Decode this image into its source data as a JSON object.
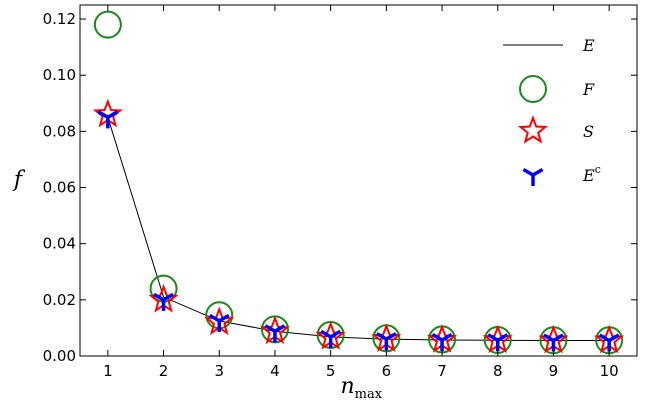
{
  "chart_data": {
    "type": "line",
    "title": "",
    "xlabel": "n",
    "xlabel_subscript": "max",
    "ylabel": "f",
    "x": [
      1,
      2,
      3,
      4,
      5,
      6,
      7,
      8,
      9,
      10
    ],
    "xlim": [
      0.5,
      10.5
    ],
    "ylim": [
      0.0,
      0.125
    ],
    "xticks": [
      "1",
      "2",
      "3",
      "4",
      "5",
      "6",
      "7",
      "8",
      "9",
      "10"
    ],
    "yticks": [
      "0.00",
      "0.02",
      "0.04",
      "0.06",
      "0.08",
      "0.10",
      "0.12"
    ],
    "ytick_values": [
      0.0,
      0.02,
      0.04,
      0.06,
      0.08,
      0.1,
      0.12
    ],
    "grid": false,
    "legend_position": "top-right",
    "series": [
      {
        "name": "E",
        "sup": "",
        "marker": "line",
        "color": "#000000",
        "values": [
          0.085,
          0.021,
          0.0125,
          0.0088,
          0.0068,
          0.006,
          0.0057,
          0.0056,
          0.0055,
          0.0055
        ]
      },
      {
        "name": "F",
        "sup": "",
        "marker": "circle",
        "color": "#1a8a1a",
        "values": [
          0.118,
          0.024,
          0.0145,
          0.0095,
          0.0075,
          0.0063,
          0.0059,
          0.0057,
          0.0056,
          0.0056
        ]
      },
      {
        "name": "S",
        "sup": "",
        "marker": "star",
        "color": "#ff0000",
        "values": [
          0.086,
          0.02,
          0.012,
          0.0088,
          0.0068,
          0.006,
          0.0057,
          0.0056,
          0.0055,
          0.0055
        ]
      },
      {
        "name": "E",
        "sup": "c",
        "marker": "tri",
        "color": "#0000ff",
        "values": [
          0.085,
          0.02,
          0.0125,
          0.0088,
          0.0068,
          0.006,
          0.0057,
          0.0056,
          0.0055,
          0.0055
        ]
      }
    ]
  }
}
